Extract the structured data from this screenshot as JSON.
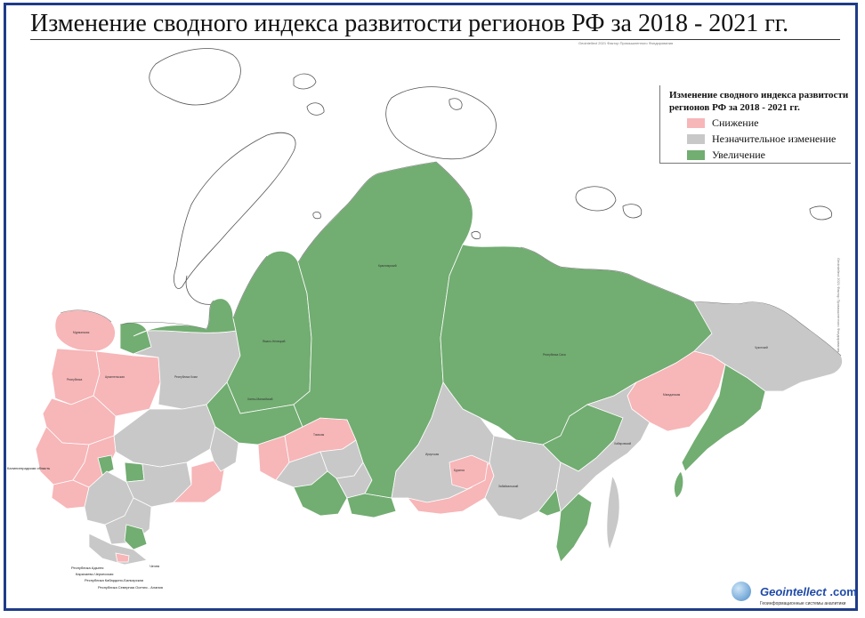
{
  "title": "Изменение сводного индекса развитости регионов РФ за 2018 - 2021 гг.",
  "credit": "Geointellect 2021 Фактор Промышленного Фондирования",
  "legend": {
    "title_line1": "Изменение сводного индекса развитости",
    "title_line2": "регионов РФ за 2018 - 2021 гг.",
    "items": [
      {
        "label": "Снижение",
        "color": "#f7b6b8"
      },
      {
        "label": "Незначительное изменение",
        "color": "#c8c8c8"
      },
      {
        "label": "Увеличение",
        "color": "#72ad72"
      }
    ]
  },
  "colors": {
    "frame": "#1f3c88",
    "decrease": "#f7b6b8",
    "neutral": "#c8c8c8",
    "increase": "#72ad72",
    "border": "#ffffff"
  },
  "logo": {
    "name": "Geointellect",
    "suffix": ".com",
    "tagline": "Геоинформационные системы аналитики"
  },
  "map_labels": {
    "kaliningrad": "Калининградская область",
    "caucasus_1": "Республика Адыгея",
    "caucasus_2": "Карачаево-Черкесская",
    "caucasus_3": "Республика Кабардино-Балкарская",
    "caucasus_4": "Республика Северная Осетия - Алания",
    "chechnya": "Чечня"
  }
}
